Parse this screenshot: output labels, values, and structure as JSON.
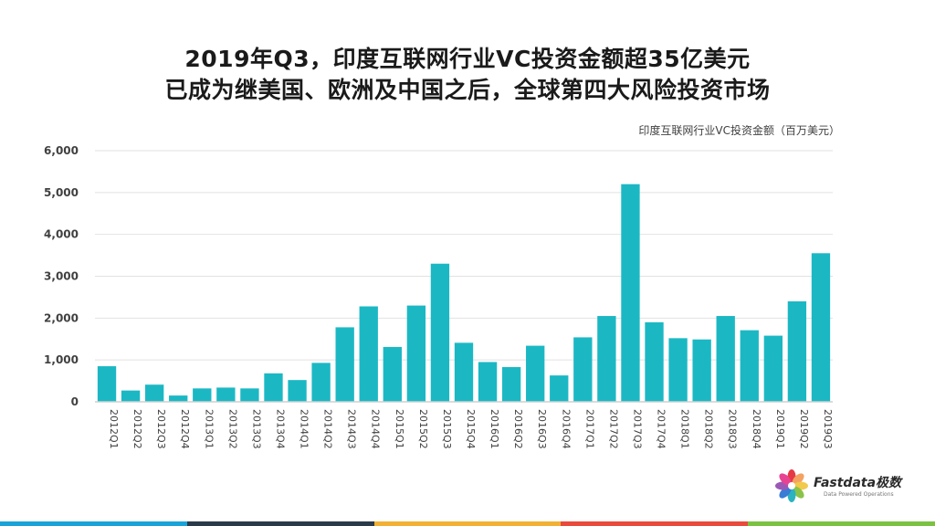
{
  "header": {
    "title_line1": "2019年Q3，印度互联网行业VC投资金额超35亿美元",
    "title_line2": "已成为继美国、欧洲及中国之后，全球第四大风险投资市场"
  },
  "chart_data": {
    "type": "bar",
    "title": "印度互联网行业VC投资金额（百万美元）",
    "xlabel": "",
    "ylabel": "",
    "ylim": [
      0,
      6000
    ],
    "yticks": [
      0,
      1000,
      2000,
      3000,
      4000,
      5000,
      6000
    ],
    "ytick_labels": [
      "0",
      "1,000",
      "2,000",
      "3,000",
      "4,000",
      "5,000",
      "6,000"
    ],
    "grid": true,
    "bar_color": "#1bb8c4",
    "categories": [
      "2012Q1",
      "2012Q2",
      "2012Q3",
      "2012Q4",
      "2013Q1",
      "2013Q2",
      "2013Q3",
      "2013Q4",
      "2014Q1",
      "2014Q2",
      "2014Q3",
      "2014Q4",
      "2015Q1",
      "2015Q2",
      "2015Q3",
      "2015Q4",
      "2016Q1",
      "2016Q2",
      "2016Q3",
      "2016Q4",
      "2017Q1",
      "2017Q2",
      "2017Q3",
      "2017Q4",
      "2018Q1",
      "2018Q2",
      "2018Q3",
      "2018Q4",
      "2019Q1",
      "2019Q2",
      "2019Q3"
    ],
    "values": [
      850,
      270,
      410,
      150,
      320,
      340,
      320,
      680,
      520,
      930,
      1780,
      2280,
      1310,
      2300,
      3300,
      1410,
      950,
      830,
      1340,
      630,
      1540,
      2050,
      5200,
      1900,
      1520,
      1490,
      2050,
      1710,
      1580,
      2400,
      3550
    ]
  },
  "logo": {
    "brand_name": "Fastdata极数",
    "tagline": "Data Powered Operations",
    "petal_colors": [
      "#e63946",
      "#f4a261",
      "#f2c94c",
      "#8bc34a",
      "#2bb3c0",
      "#3a7bd5",
      "#9b59b6",
      "#e84393"
    ]
  },
  "footer_colors": [
    "#1aa3d8",
    "#2b3a4a",
    "#f2b134",
    "#e84a3c",
    "#7cc242"
  ]
}
